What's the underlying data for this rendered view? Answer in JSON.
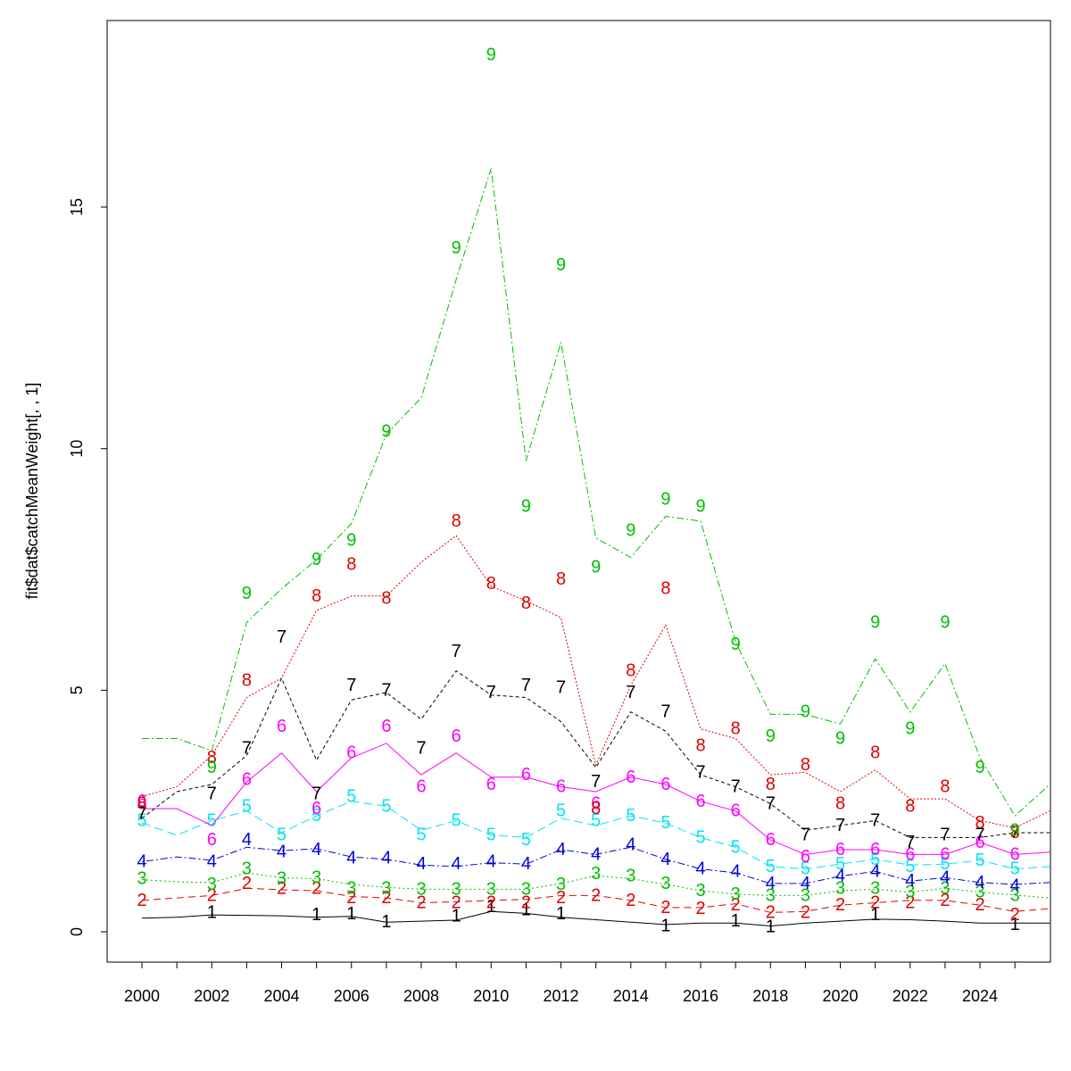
{
  "chart_data": {
    "type": "line",
    "title": "",
    "xlabel": "",
    "ylabel": "fit$dat$catchMeanWeight[, , 1]",
    "xlim": [
      1999,
      2026
    ],
    "ylim": [
      -0.6,
      19.3
    ],
    "x_ticks": [
      2000,
      2002,
      2004,
      2006,
      2008,
      2010,
      2012,
      2014,
      2016,
      2018,
      2020,
      2022,
      2024
    ],
    "y_ticks": [
      0,
      5,
      10,
      15
    ],
    "x_minor_ticks": [
      2000,
      2001,
      2002,
      2003,
      2004,
      2005,
      2006,
      2007,
      2008,
      2009,
      2010,
      2011,
      2012,
      2013,
      2014,
      2015,
      2016,
      2017,
      2018,
      2019,
      2020,
      2021,
      2022,
      2023,
      2024,
      2025
    ],
    "grid": false,
    "legend": "none",
    "years": [
      2000,
      2001,
      2002,
      2003,
      2004,
      2005,
      2006,
      2007,
      2008,
      2009,
      2010,
      2011,
      2012,
      2013,
      2014,
      2015,
      2016,
      2017,
      2018,
      2019,
      2020,
      2021,
      2022,
      2023,
      2024,
      2025,
      2026
    ],
    "series": [
      {
        "label": "1",
        "color": "#000000",
        "dash": "",
        "line": [
          0.28,
          0.3,
          0.35,
          0.34,
          0.33,
          0.3,
          0.32,
          0.2,
          0.22,
          0.24,
          0.42,
          0.38,
          0.3,
          0.25,
          0.2,
          0.15,
          0.18,
          0.18,
          0.12,
          0.18,
          0.22,
          0.26,
          0.25,
          0.22,
          0.18,
          0.18,
          0.18
        ],
        "points": [
          null,
          null,
          0.4,
          null,
          null,
          0.35,
          0.37,
          0.2,
          null,
          0.32,
          0.52,
          0.45,
          0.37,
          null,
          null,
          0.12,
          null,
          0.22,
          0.1,
          null,
          null,
          0.35,
          null,
          null,
          null,
          0.15,
          null
        ]
      },
      {
        "label": "2",
        "color": "#df0000",
        "dash": "8,5",
        "line": [
          0.65,
          0.7,
          0.75,
          0.9,
          0.87,
          0.85,
          0.73,
          0.7,
          0.6,
          0.62,
          0.65,
          0.67,
          0.75,
          0.75,
          0.65,
          0.5,
          0.5,
          0.58,
          0.4,
          0.42,
          0.55,
          0.6,
          0.65,
          0.65,
          0.55,
          0.42,
          0.48
        ],
        "points": [
          0.65,
          null,
          0.75,
          1.0,
          0.9,
          0.9,
          0.7,
          0.7,
          0.6,
          0.6,
          0.6,
          0.6,
          0.7,
          0.75,
          0.65,
          0.5,
          0.48,
          0.55,
          0.4,
          0.4,
          0.55,
          0.6,
          0.6,
          0.65,
          0.55,
          0.35,
          null
        ]
      },
      {
        "label": "3",
        "color": "#00c000",
        "dash": "2,3",
        "line": [
          1.08,
          1.03,
          1.02,
          1.22,
          1.12,
          1.1,
          0.98,
          0.92,
          0.88,
          0.88,
          0.88,
          0.88,
          1.0,
          1.16,
          1.1,
          0.98,
          0.85,
          0.78,
          0.75,
          0.75,
          0.85,
          0.88,
          0.82,
          0.9,
          0.82,
          0.76,
          0.7
        ],
        "points": [
          1.1,
          null,
          0.98,
          1.3,
          1.1,
          1.12,
          0.9,
          0.9,
          0.88,
          0.88,
          0.88,
          0.88,
          0.98,
          1.2,
          1.15,
          1.0,
          0.85,
          0.78,
          0.75,
          0.75,
          0.9,
          0.9,
          0.82,
          0.9,
          0.82,
          0.75,
          null
        ]
      },
      {
        "label": "4",
        "color": "#0000dd",
        "dash": "2,3,8,3",
        "line": [
          1.45,
          1.55,
          1.48,
          1.75,
          1.68,
          1.72,
          1.55,
          1.5,
          1.38,
          1.35,
          1.43,
          1.4,
          1.7,
          1.6,
          1.75,
          1.5,
          1.3,
          1.22,
          1.0,
          1.0,
          1.15,
          1.25,
          1.05,
          1.12,
          1.02,
          0.98,
          1.02
        ],
        "points": [
          1.45,
          null,
          1.45,
          1.9,
          1.65,
          1.7,
          1.52,
          1.52,
          1.4,
          1.4,
          1.45,
          1.4,
          1.7,
          1.6,
          1.8,
          1.5,
          1.3,
          1.25,
          1.0,
          1.0,
          1.15,
          1.25,
          1.05,
          1.12,
          1.02,
          0.95,
          null
        ]
      },
      {
        "label": "5",
        "color": "#00e5ee",
        "dash": "10,5",
        "line": [
          2.25,
          2.0,
          2.3,
          2.5,
          2.05,
          2.4,
          2.7,
          2.6,
          2.1,
          2.3,
          2.0,
          1.95,
          2.35,
          2.2,
          2.4,
          2.25,
          1.95,
          1.75,
          1.35,
          1.3,
          1.4,
          1.5,
          1.38,
          1.4,
          1.48,
          1.3,
          1.35
        ],
        "points": [
          2.3,
          null,
          2.3,
          2.6,
          2.0,
          2.4,
          2.8,
          2.6,
          2.0,
          2.3,
          2.0,
          1.9,
          2.5,
          2.3,
          2.4,
          2.25,
          1.95,
          1.75,
          1.35,
          1.3,
          1.4,
          1.5,
          1.35,
          1.4,
          1.48,
          1.3,
          null
        ]
      },
      {
        "label": "6",
        "color": "#ff00ff",
        "dash": "",
        "line": [
          2.55,
          2.55,
          2.2,
          3.1,
          3.7,
          2.9,
          3.6,
          3.9,
          3.25,
          3.7,
          3.2,
          3.2,
          3.0,
          2.9,
          3.2,
          3.05,
          2.7,
          2.5,
          1.9,
          1.6,
          1.7,
          1.7,
          1.6,
          1.6,
          1.85,
          1.6,
          1.65
        ],
        "points": [
          2.7,
          null,
          1.9,
          3.15,
          4.25,
          2.55,
          3.7,
          4.25,
          3.0,
          4.05,
          3.05,
          3.25,
          3.0,
          2.65,
          3.2,
          3.05,
          2.7,
          2.5,
          1.9,
          1.55,
          1.7,
          1.7,
          1.6,
          1.6,
          1.85,
          1.6,
          null
        ]
      },
      {
        "label": "7",
        "color": "#000000",
        "dash": "4,3",
        "line": [
          2.35,
          2.9,
          3.05,
          3.65,
          5.25,
          3.55,
          4.8,
          4.95,
          4.4,
          5.4,
          4.9,
          4.85,
          4.35,
          3.4,
          4.55,
          4.15,
          3.25,
          3.0,
          2.65,
          2.1,
          2.2,
          2.3,
          1.95,
          1.95,
          1.95,
          2.05,
          2.05
        ],
        "points": [
          2.45,
          null,
          2.85,
          3.8,
          6.1,
          2.85,
          5.1,
          5.0,
          3.8,
          5.8,
          4.95,
          5.1,
          5.05,
          3.1,
          4.95,
          4.55,
          3.3,
          3.0,
          2.65,
          2.0,
          2.2,
          2.3,
          1.85,
          2.0,
          2.0,
          2.05,
          null
        ]
      },
      {
        "label": "8",
        "color": "#df0000",
        "dash": "2,2",
        "line": [
          2.8,
          3.0,
          3.65,
          4.85,
          5.25,
          6.65,
          6.95,
          6.95,
          7.65,
          8.2,
          7.15,
          6.85,
          6.5,
          3.45,
          5.1,
          6.35,
          4.2,
          4.0,
          3.25,
          3.3,
          2.9,
          3.35,
          2.75,
          2.75,
          2.3,
          2.15,
          2.5
        ],
        "points": [
          2.65,
          null,
          3.6,
          5.2,
          null,
          6.95,
          7.6,
          6.9,
          null,
          8.5,
          7.2,
          6.8,
          7.3,
          2.55,
          5.4,
          7.1,
          3.85,
          4.2,
          3.05,
          3.45,
          2.65,
          3.7,
          2.6,
          3.0,
          2.25,
          2.05,
          null
        ]
      },
      {
        "label": "9",
        "color": "#00c000",
        "dash": "8,3,2,3",
        "line": [
          4.0,
          4.0,
          3.75,
          6.4,
          7.1,
          7.7,
          8.45,
          10.3,
          11.05,
          13.5,
          15.8,
          9.75,
          12.2,
          8.15,
          7.75,
          8.6,
          8.5,
          6.0,
          4.5,
          4.5,
          4.3,
          5.65,
          4.55,
          5.55,
          3.6,
          2.4,
          3.05
        ],
        "points": [
          null,
          null,
          3.4,
          7.0,
          null,
          7.7,
          8.1,
          10.35,
          null,
          14.15,
          18.15,
          8.8,
          13.8,
          7.55,
          8.3,
          8.95,
          8.8,
          5.95,
          4.05,
          4.55,
          4.0,
          6.4,
          4.2,
          6.4,
          3.4,
          2.1,
          null
        ]
      }
    ]
  }
}
